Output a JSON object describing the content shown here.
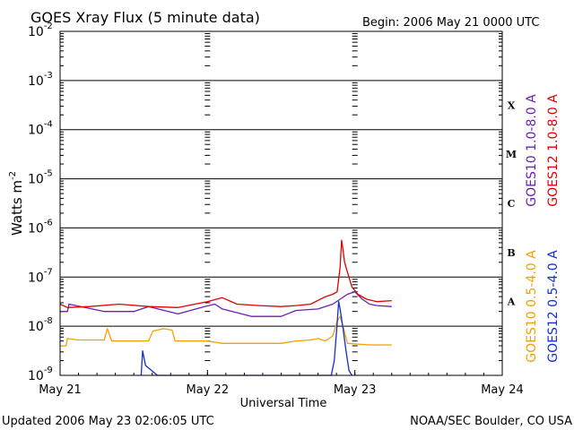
{
  "chart_data": {
    "type": "line",
    "title": "GOES Xray Flux (5 minute data)",
    "begin": "Begin:  2006 May 21 0000 UTC",
    "xlabel": "Universal Time",
    "ylabel": "Watts m",
    "ylabel_sup": "-2",
    "updated": "Updated 2006 May 23 02:06:05 UTC",
    "source": "NOAA/SEC Boulder, CO USA",
    "x_ticks": [
      "May 21",
      "May 22",
      "May 23",
      "May 24"
    ],
    "y_scale": "log",
    "ylim": [
      1e-09,
      0.01
    ],
    "xlim_days": [
      0,
      3
    ],
    "y_tick_labels": [
      {
        "base": "10",
        "exp": "-9"
      },
      {
        "base": "10",
        "exp": "-8"
      },
      {
        "base": "10",
        "exp": "-7"
      },
      {
        "base": "10",
        "exp": "-6"
      },
      {
        "base": "10",
        "exp": "-5"
      },
      {
        "base": "10",
        "exp": "-4"
      },
      {
        "base": "10",
        "exp": "-3"
      },
      {
        "base": "10",
        "exp": "-2"
      }
    ],
    "flare_classes": [
      "A",
      "B",
      "C",
      "M",
      "X"
    ],
    "series": [
      {
        "name": "GOES10 1.0-8.0 A",
        "color": "#6a1fb5",
        "points": [
          [
            0.0,
            -7.7
          ],
          [
            0.05,
            -7.7
          ],
          [
            0.06,
            -7.55
          ],
          [
            0.3,
            -7.7
          ],
          [
            0.5,
            -7.7
          ],
          [
            0.6,
            -7.6
          ],
          [
            0.8,
            -7.75
          ],
          [
            0.98,
            -7.6
          ],
          [
            1.05,
            -7.55
          ],
          [
            1.1,
            -7.65
          ],
          [
            1.3,
            -7.8
          ],
          [
            1.5,
            -7.8
          ],
          [
            1.6,
            -7.68
          ],
          [
            1.75,
            -7.65
          ],
          [
            1.85,
            -7.55
          ],
          [
            1.9,
            -7.45
          ],
          [
            1.95,
            -7.35
          ],
          [
            2.0,
            -7.3
          ],
          [
            2.05,
            -7.45
          ],
          [
            2.1,
            -7.55
          ],
          [
            2.15,
            -7.58
          ],
          [
            2.25,
            -7.6
          ]
        ]
      },
      {
        "name": "GOES12 1.0-8.0 A",
        "color": "#e00000",
        "points": [
          [
            0.0,
            -7.55
          ],
          [
            0.05,
            -7.62
          ],
          [
            0.2,
            -7.6
          ],
          [
            0.4,
            -7.55
          ],
          [
            0.6,
            -7.6
          ],
          [
            0.8,
            -7.62
          ],
          [
            1.0,
            -7.5
          ],
          [
            1.1,
            -7.42
          ],
          [
            1.2,
            -7.55
          ],
          [
            1.35,
            -7.58
          ],
          [
            1.5,
            -7.6
          ],
          [
            1.6,
            -7.58
          ],
          [
            1.7,
            -7.55
          ],
          [
            1.8,
            -7.4
          ],
          [
            1.85,
            -7.35
          ],
          [
            1.88,
            -7.3
          ],
          [
            1.9,
            -6.8
          ],
          [
            1.91,
            -6.25
          ],
          [
            1.92,
            -6.45
          ],
          [
            1.93,
            -6.7
          ],
          [
            1.95,
            -6.9
          ],
          [
            1.98,
            -7.2
          ],
          [
            2.02,
            -7.35
          ],
          [
            2.08,
            -7.45
          ],
          [
            2.15,
            -7.5
          ],
          [
            2.25,
            -7.48
          ]
        ]
      },
      {
        "name": "GOES10 0.5-4.0 A",
        "color": "#f5a000",
        "points": [
          [
            0.0,
            -8.4
          ],
          [
            0.04,
            -8.4
          ],
          [
            0.05,
            -8.25
          ],
          [
            0.12,
            -8.28
          ],
          [
            0.3,
            -8.28
          ],
          [
            0.32,
            -8.05
          ],
          [
            0.35,
            -8.3
          ],
          [
            0.6,
            -8.3
          ],
          [
            0.63,
            -8.1
          ],
          [
            0.7,
            -8.05
          ],
          [
            0.76,
            -8.08
          ],
          [
            0.78,
            -8.3
          ],
          [
            1.0,
            -8.3
          ],
          [
            1.1,
            -8.35
          ],
          [
            1.3,
            -8.35
          ],
          [
            1.5,
            -8.35
          ],
          [
            1.6,
            -8.3
          ],
          [
            1.7,
            -8.28
          ],
          [
            1.75,
            -8.25
          ],
          [
            1.8,
            -8.3
          ],
          [
            1.85,
            -8.2
          ],
          [
            1.88,
            -7.9
          ],
          [
            1.9,
            -7.8
          ],
          [
            1.92,
            -8.0
          ],
          [
            1.95,
            -8.35
          ],
          [
            2.1,
            -8.38
          ],
          [
            2.25,
            -8.38
          ]
        ]
      },
      {
        "name": "GOES12 0.5-4.0 A",
        "color": "#1030d0",
        "points": [
          [
            0.55,
            -9.0
          ],
          [
            0.56,
            -8.5
          ],
          [
            0.58,
            -8.8
          ],
          [
            0.62,
            -8.9
          ],
          [
            0.66,
            -9.0
          ],
          [
            1.8,
            -9.0
          ],
          [
            1.84,
            -9.0
          ],
          [
            1.86,
            -8.7
          ],
          [
            1.88,
            -7.95
          ],
          [
            1.89,
            -7.5
          ],
          [
            1.9,
            -7.65
          ],
          [
            1.92,
            -8.05
          ],
          [
            1.94,
            -8.5
          ],
          [
            1.96,
            -8.9
          ],
          [
            1.98,
            -9.0
          ]
        ]
      }
    ]
  }
}
